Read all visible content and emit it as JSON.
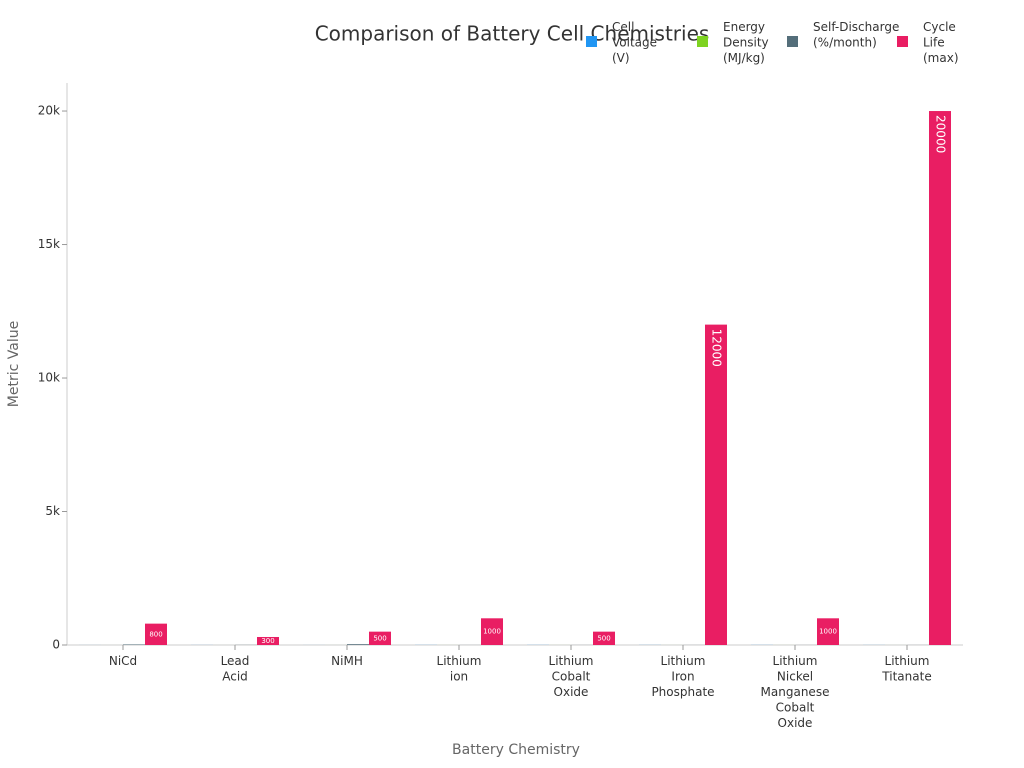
{
  "chart_data": {
    "type": "bar",
    "title": "Comparison of Battery Cell Chemistries",
    "x_label": "Battery Chemistry",
    "y_label": "Metric Value",
    "categories": [
      "NiCd",
      "Lead Acid",
      "NiMH",
      "Lithium ion",
      "Lithium Cobalt Oxide",
      "Lithium Iron Phosphate",
      "Lithium Nickel Manganese Cobalt Oxide",
      "Lithium Titanate"
    ],
    "series": [
      {
        "name": "Cell Voltage (V)",
        "color": "#2196f3",
        "values": [
          1.2,
          2.1,
          1.2,
          3.6,
          3.7,
          3.2,
          3.6,
          2.4
        ]
      },
      {
        "name": "Energy Density (MJ/kg)",
        "color": "#7ed321",
        "values": [
          0.14,
          0.14,
          0.36,
          0.9,
          0.7,
          0.5,
          0.8,
          0.3
        ]
      },
      {
        "name": "Self-Discharge (%/month)",
        "color": "#546e7a",
        "values": [
          20,
          5,
          30,
          2,
          2,
          2,
          2,
          2
        ]
      },
      {
        "name": "Cycle Life (max)",
        "color": "#e91e63",
        "values": [
          800,
          300,
          500,
          1000,
          500,
          12000,
          1000,
          20000
        ],
        "data_labels": true
      }
    ],
    "ylim": [
      0,
      21050
    ],
    "yticks": [
      0,
      {
        "value": 5000,
        "label": "5k"
      },
      {
        "value": 10000,
        "label": "10k"
      },
      {
        "value": 15000,
        "label": "15k"
      },
      {
        "value": 20000,
        "label": "20k"
      }
    ]
  }
}
